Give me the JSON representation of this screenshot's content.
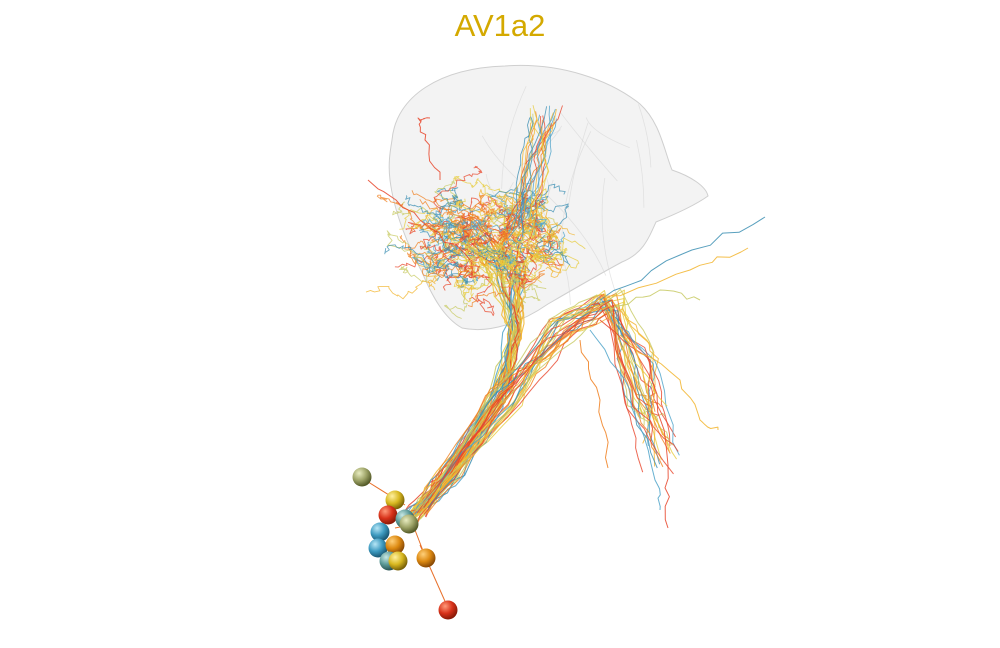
{
  "title": "AV1a2",
  "colors": {
    "title": "#d4a900",
    "neuropil_fill": "#e4e4e4",
    "neuropil_stroke": "#cfcfcf",
    "palette": [
      "#e8452a",
      "#f07f1e",
      "#f2b42c",
      "#e7cc3e",
      "#c7c962",
      "#4ea3c9",
      "#3c8fb3"
    ]
  },
  "icons": [
    "neuropil-mesh",
    "neuron-skeleton",
    "soma-sphere"
  ]
}
